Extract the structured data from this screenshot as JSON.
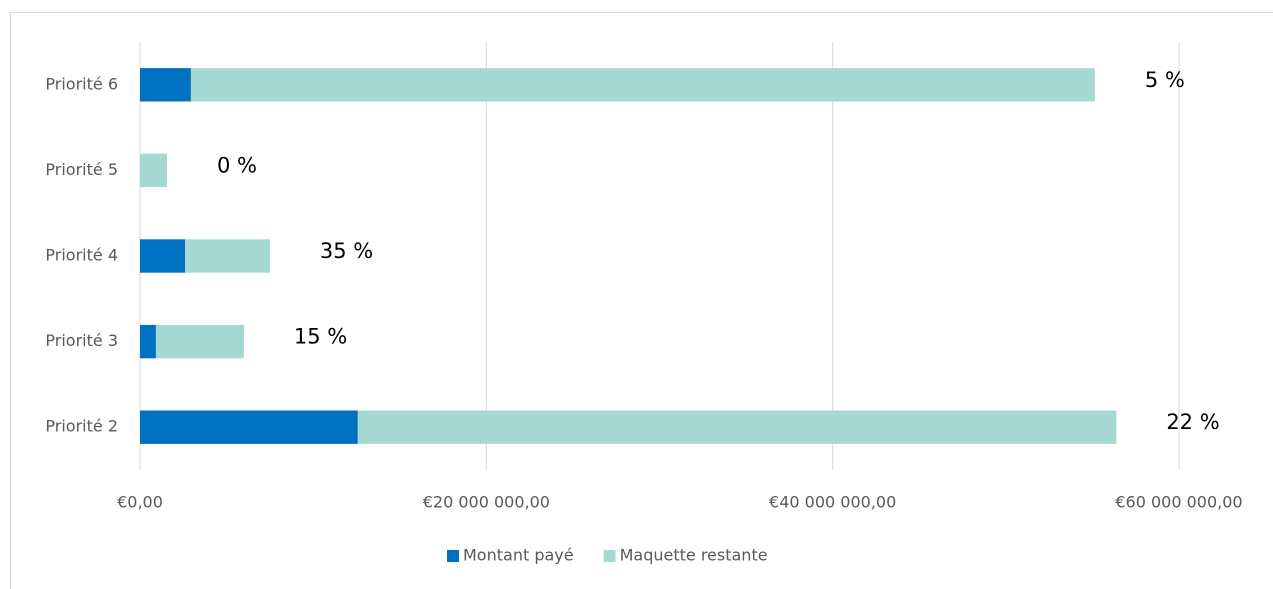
{
  "chart_data": {
    "type": "stacked_barh",
    "categories": [
      "Priorité 2",
      "Priorité 3",
      "Priorité 4",
      "Priorité 5",
      "Priorité 6"
    ],
    "series": [
      {
        "name": "Montant payé",
        "color": "#0070c0",
        "values": [
          12580000,
          920000,
          2600000,
          0,
          2940000
        ]
      },
      {
        "name": "Maquette restante",
        "color": "#a6d8d2",
        "values": [
          43800000,
          5080000,
          4900000,
          1560000,
          52200000
        ]
      }
    ],
    "annotations": [
      "22 %",
      "15 %",
      "35 %",
      "0 %",
      "5 %"
    ],
    "xlim": [
      0,
      60000000
    ],
    "xticks": [
      {
        "value": 0,
        "label": "€0,00"
      },
      {
        "value": 20000000,
        "label": "€20 000 000,00"
      },
      {
        "value": 40000000,
        "label": "€40 000 000,00"
      },
      {
        "value": 60000000,
        "label": "€60 000 000,00"
      }
    ],
    "grid": true,
    "legend": "bottom"
  }
}
